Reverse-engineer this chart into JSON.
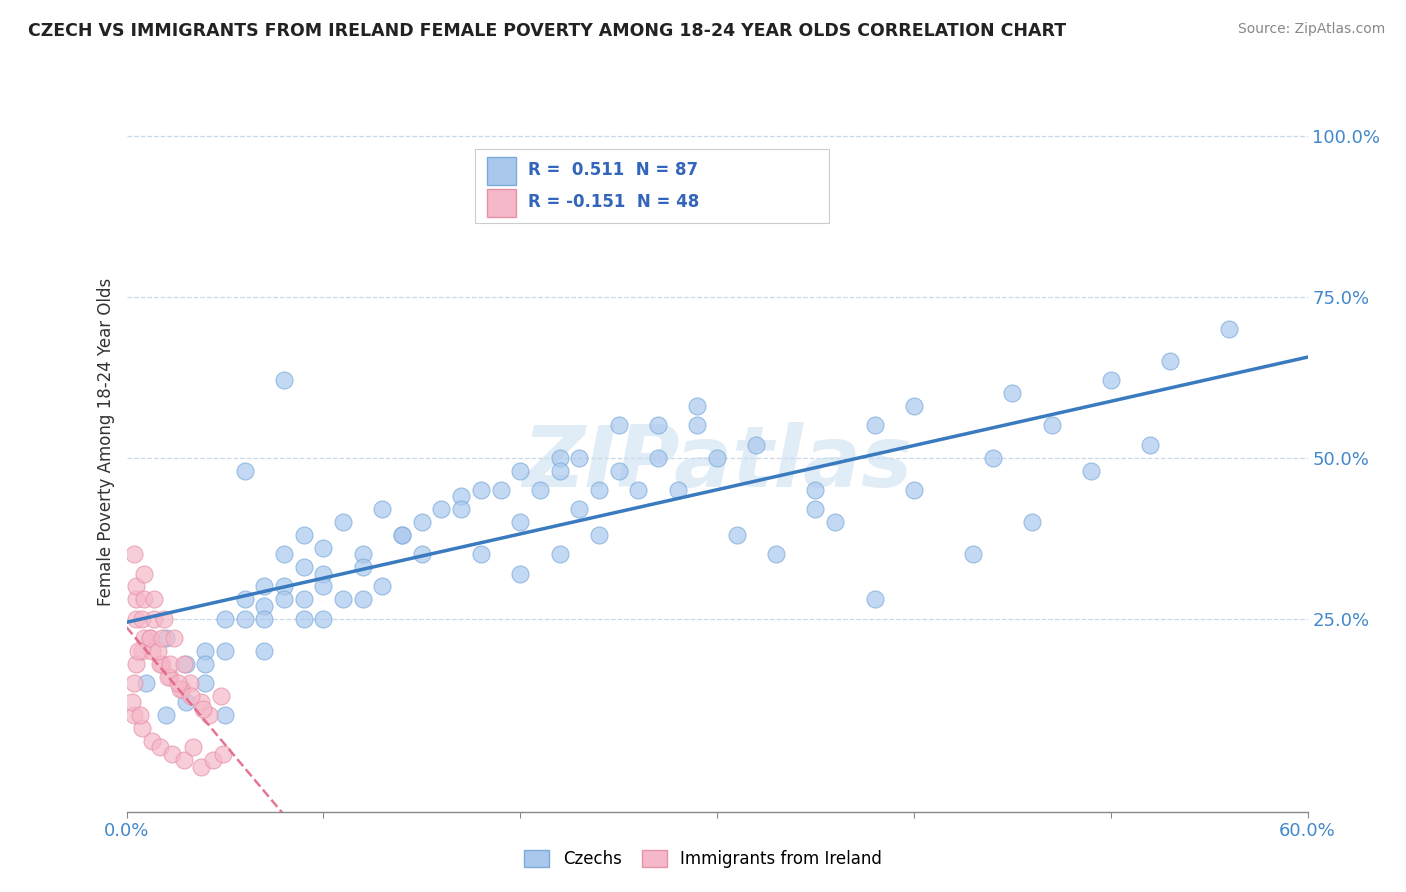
{
  "title": "CZECH VS IMMIGRANTS FROM IRELAND FEMALE POVERTY AMONG 18-24 YEAR OLDS CORRELATION CHART",
  "source": "Source: ZipAtlas.com",
  "ylabel": "Female Poverty Among 18-24 Year Olds",
  "xlim": [
    0.0,
    0.6
  ],
  "ylim": [
    -0.05,
    1.1
  ],
  "blue_R": 0.511,
  "blue_N": 87,
  "pink_R": -0.151,
  "pink_N": 48,
  "blue_color": "#aac8ee",
  "blue_edge": "#7aaad8",
  "blue_line": "#3a7abf",
  "pink_color": "#f4b8c8",
  "pink_edge": "#e890a8",
  "pink_line": "#e06080",
  "legend_blue_label": "Czechs",
  "legend_pink_label": "Immigrants from Ireland",
  "watermark": "ZIPatlas",
  "background_color": "#ffffff",
  "blue_x": [
    0.02,
    0.03,
    0.04,
    0.01,
    0.05,
    0.06,
    0.07,
    0.08,
    0.02,
    0.03,
    0.09,
    0.1,
    0.11,
    0.12,
    0.13,
    0.07,
    0.08,
    0.09,
    0.1,
    0.05,
    0.06,
    0.04,
    0.08,
    0.1,
    0.12,
    0.09,
    0.07,
    0.14,
    0.16,
    0.18,
    0.2,
    0.15,
    0.17,
    0.22,
    0.25,
    0.23,
    0.28,
    0.3,
    0.32,
    0.35,
    0.38,
    0.4,
    0.45,
    0.2,
    0.22,
    0.08,
    0.06,
    0.04,
    0.13,
    0.15,
    0.11,
    0.09,
    0.21,
    0.23,
    0.25,
    0.18,
    0.2,
    0.24,
    0.27,
    0.29,
    0.05,
    0.07,
    0.1,
    0.12,
    0.14,
    0.17,
    0.19,
    0.22,
    0.27,
    0.29,
    0.33,
    0.36,
    0.4,
    0.44,
    0.47,
    0.5,
    0.53,
    0.56,
    0.38,
    0.43,
    0.46,
    0.49,
    0.52,
    0.35,
    0.31,
    0.26,
    0.24
  ],
  "blue_y": [
    0.22,
    0.18,
    0.2,
    0.15,
    0.25,
    0.28,
    0.3,
    0.35,
    0.1,
    0.12,
    0.38,
    0.32,
    0.4,
    0.35,
    0.42,
    0.27,
    0.3,
    0.33,
    0.36,
    0.2,
    0.25,
    0.18,
    0.28,
    0.3,
    0.33,
    0.28,
    0.25,
    0.38,
    0.42,
    0.45,
    0.48,
    0.4,
    0.44,
    0.5,
    0.48,
    0.42,
    0.45,
    0.5,
    0.52,
    0.45,
    0.55,
    0.58,
    0.6,
    0.32,
    0.35,
    0.62,
    0.48,
    0.15,
    0.3,
    0.35,
    0.28,
    0.25,
    0.45,
    0.5,
    0.55,
    0.35,
    0.4,
    0.45,
    0.5,
    0.55,
    0.1,
    0.2,
    0.25,
    0.28,
    0.38,
    0.42,
    0.45,
    0.48,
    0.55,
    0.58,
    0.35,
    0.4,
    0.45,
    0.5,
    0.55,
    0.62,
    0.65,
    0.7,
    0.28,
    0.35,
    0.4,
    0.48,
    0.52,
    0.42,
    0.38,
    0.45,
    0.38
  ],
  "pink_x": [
    0.005,
    0.008,
    0.012,
    0.018,
    0.022,
    0.028,
    0.032,
    0.038,
    0.042,
    0.048,
    0.005,
    0.009,
    0.013,
    0.017,
    0.021,
    0.027,
    0.033,
    0.039,
    0.005,
    0.008,
    0.012,
    0.016,
    0.022,
    0.026,
    0.005,
    0.009,
    0.014,
    0.018,
    0.004,
    0.008,
    0.013,
    0.017,
    0.023,
    0.029,
    0.034,
    0.038,
    0.044,
    0.049,
    0.004,
    0.009,
    0.014,
    0.019,
    0.024,
    0.029,
    0.004,
    0.006,
    0.003,
    0.007
  ],
  "pink_y": [
    0.18,
    0.2,
    0.22,
    0.18,
    0.16,
    0.14,
    0.15,
    0.12,
    0.1,
    0.13,
    0.25,
    0.22,
    0.2,
    0.18,
    0.16,
    0.14,
    0.13,
    0.11,
    0.28,
    0.25,
    0.22,
    0.2,
    0.18,
    0.15,
    0.3,
    0.28,
    0.25,
    0.22,
    0.1,
    0.08,
    0.06,
    0.05,
    0.04,
    0.03,
    0.05,
    0.02,
    0.03,
    0.04,
    0.35,
    0.32,
    0.28,
    0.25,
    0.22,
    0.18,
    0.15,
    0.2,
    0.12,
    0.1
  ]
}
